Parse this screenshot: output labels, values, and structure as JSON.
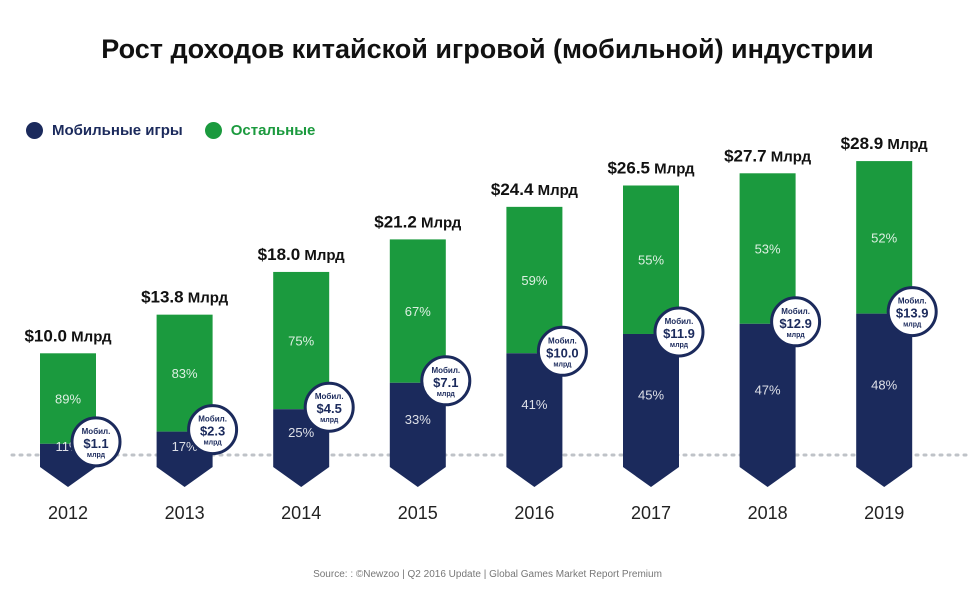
{
  "chart_data": {
    "type": "bar",
    "title": "Рост доходов китайской игровой (мобильной) индустрии",
    "categories": [
      "2012",
      "2013",
      "2014",
      "2015",
      "2016",
      "2017",
      "2018",
      "2019"
    ],
    "totals": [
      10.0,
      13.8,
      18.0,
      21.2,
      24.4,
      26.5,
      27.7,
      28.9
    ],
    "total_labels": [
      "$10.0",
      "$13.8",
      "$18.0",
      "$21.2",
      "$24.4",
      "$26.5",
      "$27.7",
      "$28.9"
    ],
    "total_unit": "Млрд",
    "series": [
      {
        "name": "Мобильные игры",
        "color": "#1b2a5c",
        "percent_labels": [
          "11%",
          "17%",
          "25%",
          "33%",
          "41%",
          "45%",
          "47%",
          "48%"
        ],
        "values": [
          1.1,
          2.3,
          4.5,
          7.1,
          10.0,
          11.9,
          12.9,
          13.9
        ],
        "value_labels": [
          "$1.1",
          "$2.3",
          "$4.5",
          "$7.1",
          "$10.0",
          "$11.9",
          "$12.9",
          "$13.9"
        ]
      },
      {
        "name": "Остальные",
        "color": "#1b9a3e",
        "percent_labels": [
          "89%",
          "83%",
          "75%",
          "67%",
          "59%",
          "55%",
          "53%",
          "52%"
        ],
        "values": [
          8.9,
          11.5,
          13.5,
          14.1,
          14.4,
          14.6,
          14.8,
          15.0
        ]
      }
    ],
    "badge_top": "Мобил.",
    "badge_bottom": "млрд",
    "legend_position": "top-left",
    "grid": false
  },
  "source": "Source: : ©Newzoo | Q2 2016 Update | Global Games Market Report Premium"
}
